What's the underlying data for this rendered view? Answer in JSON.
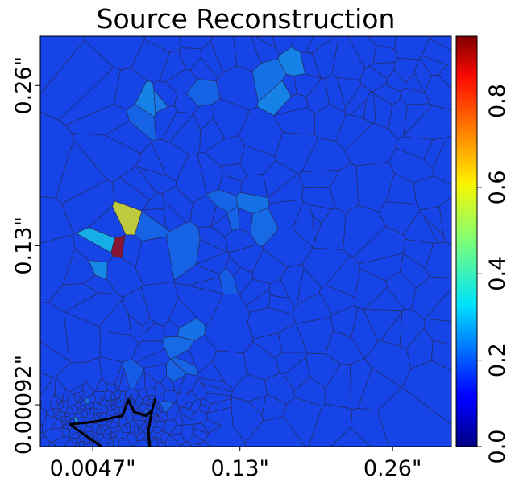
{
  "chart_data": {
    "type": "heatmap",
    "title": "Source Reconstruction",
    "x_ticks": [
      {
        "value": 0.0047,
        "label": "0.0047\""
      },
      {
        "value": 0.13,
        "label": "0.13\""
      },
      {
        "value": 0.26,
        "label": "0.26\""
      }
    ],
    "y_ticks": [
      {
        "value": 0.00092,
        "label": "0.00092\""
      },
      {
        "value": 0.13,
        "label": "0.13\""
      },
      {
        "value": 0.26,
        "label": "0.26\""
      }
    ],
    "xlim": [
      -0.04,
      0.31
    ],
    "ylim": [
      -0.033,
      0.3
    ],
    "colorbar": {
      "colormap": "jet",
      "range": [
        0.0,
        0.95
      ],
      "ticks": [
        {
          "value": 0.0,
          "label": "0.0"
        },
        {
          "value": 0.2,
          "label": "0.2"
        },
        {
          "value": 0.4,
          "label": "0.4"
        },
        {
          "value": 0.6,
          "label": "0.6"
        },
        {
          "value": 0.8,
          "label": "0.8"
        }
      ]
    },
    "background_value": 0.18,
    "highlighted_cells": [
      {
        "x": 0.178,
        "y": 0.278,
        "value": 0.26
      },
      {
        "x": 0.168,
        "y": 0.255,
        "value": 0.26
      },
      {
        "x": 0.157,
        "y": 0.267,
        "value": 0.24
      },
      {
        "x": 0.05,
        "y": 0.244,
        "value": 0.26
      },
      {
        "x": 0.065,
        "y": 0.245,
        "value": 0.25
      },
      {
        "x": 0.045,
        "y": 0.237,
        "value": 0.22
      },
      {
        "x": 0.095,
        "y": 0.255,
        "value": 0.22
      },
      {
        "x": 0.115,
        "y": 0.165,
        "value": 0.22
      },
      {
        "x": 0.14,
        "y": 0.166,
        "value": 0.24
      },
      {
        "x": 0.147,
        "y": 0.148,
        "value": 0.23
      },
      {
        "x": 0.125,
        "y": 0.149,
        "value": 0.22
      },
      {
        "x": 0.036,
        "y": 0.149,
        "value": 0.58
      },
      {
        "x": 0.026,
        "y": 0.13,
        "value": 0.92
      },
      {
        "x": 0.018,
        "y": 0.132,
        "value": 0.32
      },
      {
        "x": 0.011,
        "y": 0.112,
        "value": 0.27
      },
      {
        "x": 0.05,
        "y": 0.145,
        "value": 0.22
      },
      {
        "x": 0.085,
        "y": 0.13,
        "value": 0.22
      },
      {
        "x": 0.12,
        "y": 0.105,
        "value": 0.21
      },
      {
        "x": 0.08,
        "y": 0.062,
        "value": 0.24
      },
      {
        "x": 0.077,
        "y": 0.05,
        "value": 0.23
      },
      {
        "x": 0.085,
        "y": 0.035,
        "value": 0.22
      },
      {
        "x": 0.075,
        "y": 0.025,
        "value": 0.22
      },
      {
        "x": 0.04,
        "y": 0.02,
        "value": 0.21
      },
      {
        "x": 0.0,
        "y": 0.005,
        "value": 0.24
      },
      {
        "x": -0.01,
        "y": -0.012,
        "value": 0.3
      },
      {
        "x": 0.05,
        "y": -0.005,
        "value": 0.22
      },
      {
        "x": 0.065,
        "y": 0.0,
        "value": 0.22
      }
    ],
    "caustic_curve": [
      [
        -0.015,
        -0.015
      ],
      [
        0.005,
        -0.013
      ],
      [
        0.02,
        -0.01
      ],
      [
        0.03,
        -0.008
      ],
      [
        0.033,
        0.0
      ],
      [
        0.035,
        0.005
      ],
      [
        0.04,
        -0.005
      ],
      [
        0.05,
        -0.008
      ],
      [
        0.055,
        -0.004
      ],
      [
        0.058,
        0.006
      ]
    ],
    "caustic_curve_2": [
      [
        0.055,
        -0.004
      ],
      [
        0.052,
        -0.02
      ],
      [
        0.053,
        -0.033
      ]
    ],
    "caustic_curve_3": [
      [
        -0.015,
        -0.015
      ],
      [
        0.0,
        -0.025
      ],
      [
        0.012,
        -0.033
      ]
    ]
  }
}
